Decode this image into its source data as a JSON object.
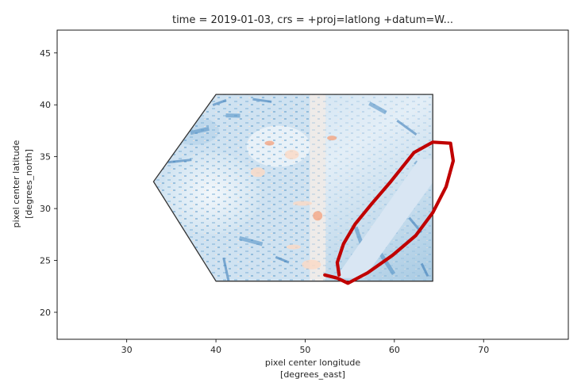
{
  "chart_data": {
    "type": "heatmap",
    "title": "time = 2019-01-03, crs = +proj=latlong +datum=W...",
    "xlabel_line1": "pixel center longitude",
    "xlabel_line2": "[degrees_east]",
    "ylabel_line1": "pixel center latitude",
    "ylabel_line2": "[degrees_north]",
    "xlim": [
      22.2,
      79.5
    ],
    "ylim": [
      17.4,
      47.2
    ],
    "x_ticks": [
      30,
      40,
      50,
      60,
      70
    ],
    "y_ticks": [
      20,
      25,
      30,
      35,
      40,
      45
    ],
    "grid": false,
    "hexagon_outline": [
      [
        40,
        41
      ],
      [
        64.3,
        41
      ],
      [
        64.3,
        23
      ],
      [
        40,
        23
      ],
      [
        33,
        32.6
      ]
    ],
    "gap_stripe_polygon": [
      [
        53.4,
        23.3
      ],
      [
        56.6,
        23.3
      ],
      [
        66.2,
        34.8
      ],
      [
        62.8,
        34.8
      ]
    ],
    "scene_seam_lon": 52.3,
    "highlight_stroke": [
      [
        52.2,
        23.6
      ],
      [
        53.6,
        23.3
      ],
      [
        54.8,
        22.8
      ],
      [
        57,
        23.8
      ],
      [
        59.8,
        25.5
      ],
      [
        62.4,
        27.4
      ],
      [
        64.3,
        29.6
      ],
      [
        65.8,
        32.1
      ],
      [
        66.6,
        34.6
      ],
      [
        66.3,
        36.3
      ],
      [
        64.3,
        36.4
      ],
      [
        62.2,
        35.4
      ],
      [
        59.6,
        32.6
      ],
      [
        57.4,
        30.4
      ],
      [
        55.6,
        28.5
      ],
      [
        54.3,
        26.6
      ],
      [
        53.6,
        24.8
      ],
      [
        53.8,
        23.6
      ]
    ],
    "colors": {
      "scene_blue_dark": "#2166ac",
      "scene_blue_light": "#d1e5f0",
      "scene_red": "#f4a582",
      "stripe": "#d9e6f3",
      "highlight": "#c00000",
      "outline": "#333333"
    }
  }
}
